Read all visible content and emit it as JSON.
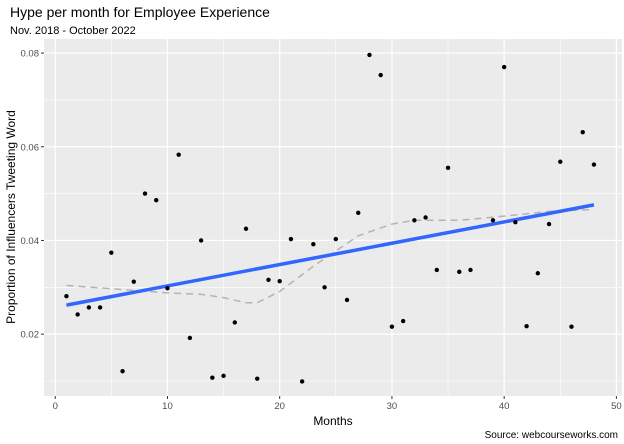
{
  "chart_data": {
    "type": "scatter",
    "title": "Hype per month for Employee Experience",
    "subtitle": "Nov. 2018 - October 2022",
    "xlabel": "Months",
    "ylabel": "Proportion of Influencers Tweeting Word",
    "caption": "Source: webcourseworks.com",
    "xlim": [
      -1,
      50.5
    ],
    "ylim": [
      0.0068,
      0.083
    ],
    "xticks": [
      0,
      10,
      20,
      30,
      40,
      50
    ],
    "xtick_labels": [
      "0",
      "10",
      "20",
      "30",
      "40",
      "50"
    ],
    "yticks": [
      0.02,
      0.04,
      0.06,
      0.08
    ],
    "ytick_labels": [
      "0.02",
      "0.04",
      "0.06",
      "0.08"
    ],
    "grid": true,
    "points": [
      [
        1,
        0.0281
      ],
      [
        2,
        0.0242
      ],
      [
        3,
        0.0257
      ],
      [
        4,
        0.0257
      ],
      [
        5,
        0.0374
      ],
      [
        6,
        0.0121
      ],
      [
        7,
        0.0312
      ],
      [
        8,
        0.05
      ],
      [
        9,
        0.0486
      ],
      [
        10,
        0.0298
      ],
      [
        11,
        0.0583
      ],
      [
        12,
        0.0192
      ],
      [
        13,
        0.04
      ],
      [
        14,
        0.0107
      ],
      [
        15,
        0.0111
      ],
      [
        16,
        0.0225
      ],
      [
        17,
        0.0425
      ],
      [
        18,
        0.0105
      ],
      [
        19,
        0.0316
      ],
      [
        20,
        0.0313
      ],
      [
        21,
        0.0403
      ],
      [
        22,
        0.0099
      ],
      [
        23,
        0.0392
      ],
      [
        24,
        0.03
      ],
      [
        25,
        0.0403
      ],
      [
        26,
        0.0273
      ],
      [
        27,
        0.0459
      ],
      [
        28,
        0.0796
      ],
      [
        29,
        0.0753
      ],
      [
        30,
        0.0216
      ],
      [
        31,
        0.0228
      ],
      [
        32,
        0.0443
      ],
      [
        33,
        0.0449
      ],
      [
        34,
        0.0337
      ],
      [
        35,
        0.0555
      ],
      [
        36,
        0.0333
      ],
      [
        37,
        0.0337
      ],
      [
        39,
        0.0443
      ],
      [
        40,
        0.077
      ],
      [
        41,
        0.0439
      ],
      [
        42,
        0.0217
      ],
      [
        43,
        0.033
      ],
      [
        44,
        0.0435
      ],
      [
        45,
        0.0568
      ],
      [
        46,
        0.0216
      ],
      [
        47,
        0.0631
      ],
      [
        48,
        0.0562
      ]
    ],
    "linear_fit": {
      "color": "#3366ff",
      "x": [
        1,
        48
      ],
      "y": [
        0.0262,
        0.0476
      ]
    },
    "loess_fit": {
      "color": "#b3b3b3",
      "x": [
        1,
        5,
        10,
        13,
        15,
        17,
        18,
        20,
        23,
        27,
        30,
        32,
        36,
        40,
        44,
        48
      ],
      "y": [
        0.0304,
        0.0297,
        0.0288,
        0.0285,
        0.0278,
        0.0267,
        0.0267,
        0.0291,
        0.0345,
        0.041,
        0.0435,
        0.0443,
        0.0443,
        0.0452,
        0.0462,
        0.0466
      ]
    }
  }
}
